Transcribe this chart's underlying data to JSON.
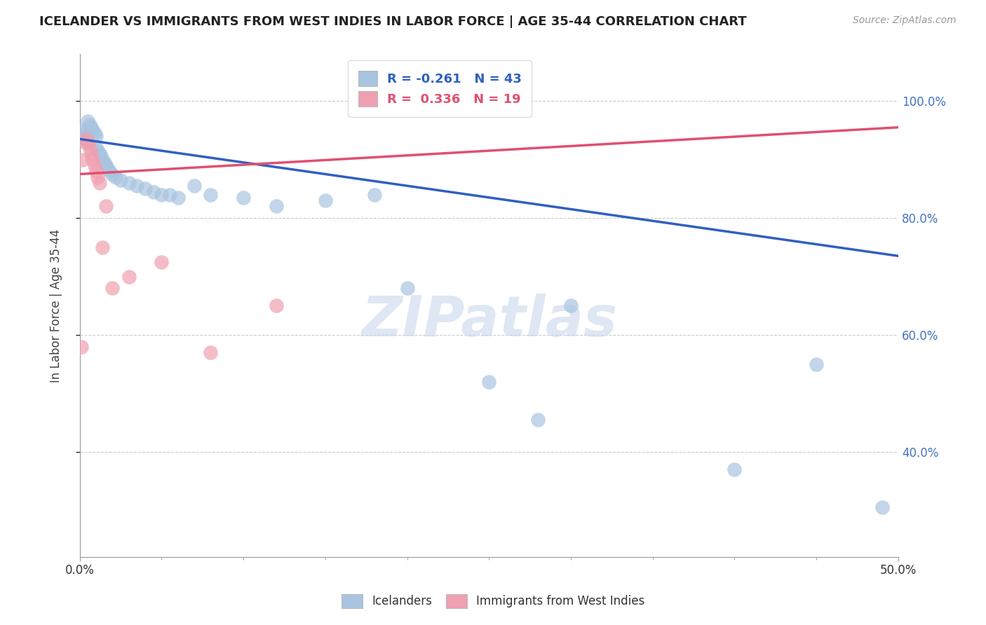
{
  "title": "ICELANDER VS IMMIGRANTS FROM WEST INDIES IN LABOR FORCE | AGE 35-44 CORRELATION CHART",
  "source": "Source: ZipAtlas.com",
  "ylabel": "In Labor Force | Age 35-44",
  "x_min": 0.0,
  "x_max": 0.5,
  "y_min": 0.22,
  "y_max": 1.08,
  "watermark": "ZIPatlas",
  "blue_R": -0.261,
  "blue_N": 43,
  "pink_R": 0.336,
  "pink_N": 19,
  "blue_color": "#a8c4e0",
  "pink_color": "#f0a0b0",
  "blue_line_color": "#3060c0",
  "pink_line_color": "#e05070",
  "legend_blue_label": "Icelanders",
  "legend_pink_label": "Immigrants from West Indies",
  "y_ticks": [
    0.4,
    0.6,
    0.8,
    1.0
  ],
  "blue_line_x0": 0.0,
  "blue_line_x1": 0.5,
  "blue_line_y0": 0.935,
  "blue_line_y1": 0.735,
  "pink_line_x0": 0.0,
  "pink_line_x1": 0.5,
  "pink_line_y0": 0.875,
  "pink_line_y1": 0.955,
  "blue_x": [
    0.001,
    0.002,
    0.003,
    0.004,
    0.005,
    0.005,
    0.006,
    0.007,
    0.008,
    0.009,
    0.01,
    0.01,
    0.011,
    0.012,
    0.013,
    0.014,
    0.015,
    0.016,
    0.017,
    0.018,
    0.02,
    0.022,
    0.025,
    0.03,
    0.035,
    0.04,
    0.045,
    0.05,
    0.055,
    0.06,
    0.07,
    0.08,
    0.1,
    0.12,
    0.15,
    0.18,
    0.2,
    0.25,
    0.28,
    0.3,
    0.4,
    0.45,
    0.49
  ],
  "blue_y": [
    0.95,
    0.945,
    0.94,
    0.935,
    0.93,
    0.965,
    0.96,
    0.955,
    0.95,
    0.945,
    0.94,
    0.92,
    0.915,
    0.91,
    0.905,
    0.9,
    0.895,
    0.89,
    0.885,
    0.88,
    0.875,
    0.87,
    0.865,
    0.86,
    0.855,
    0.85,
    0.845,
    0.84,
    0.84,
    0.835,
    0.855,
    0.84,
    0.835,
    0.82,
    0.83,
    0.84,
    0.68,
    0.52,
    0.455,
    0.65,
    0.37,
    0.55,
    0.305
  ],
  "pink_x": [
    0.001,
    0.002,
    0.003,
    0.004,
    0.005,
    0.006,
    0.007,
    0.008,
    0.009,
    0.01,
    0.011,
    0.012,
    0.014,
    0.016,
    0.02,
    0.03,
    0.05,
    0.08,
    0.12
  ],
  "pink_y": [
    0.58,
    0.9,
    0.93,
    0.935,
    0.93,
    0.92,
    0.91,
    0.9,
    0.89,
    0.88,
    0.87,
    0.86,
    0.75,
    0.82,
    0.68,
    0.7,
    0.725,
    0.57,
    0.65
  ]
}
